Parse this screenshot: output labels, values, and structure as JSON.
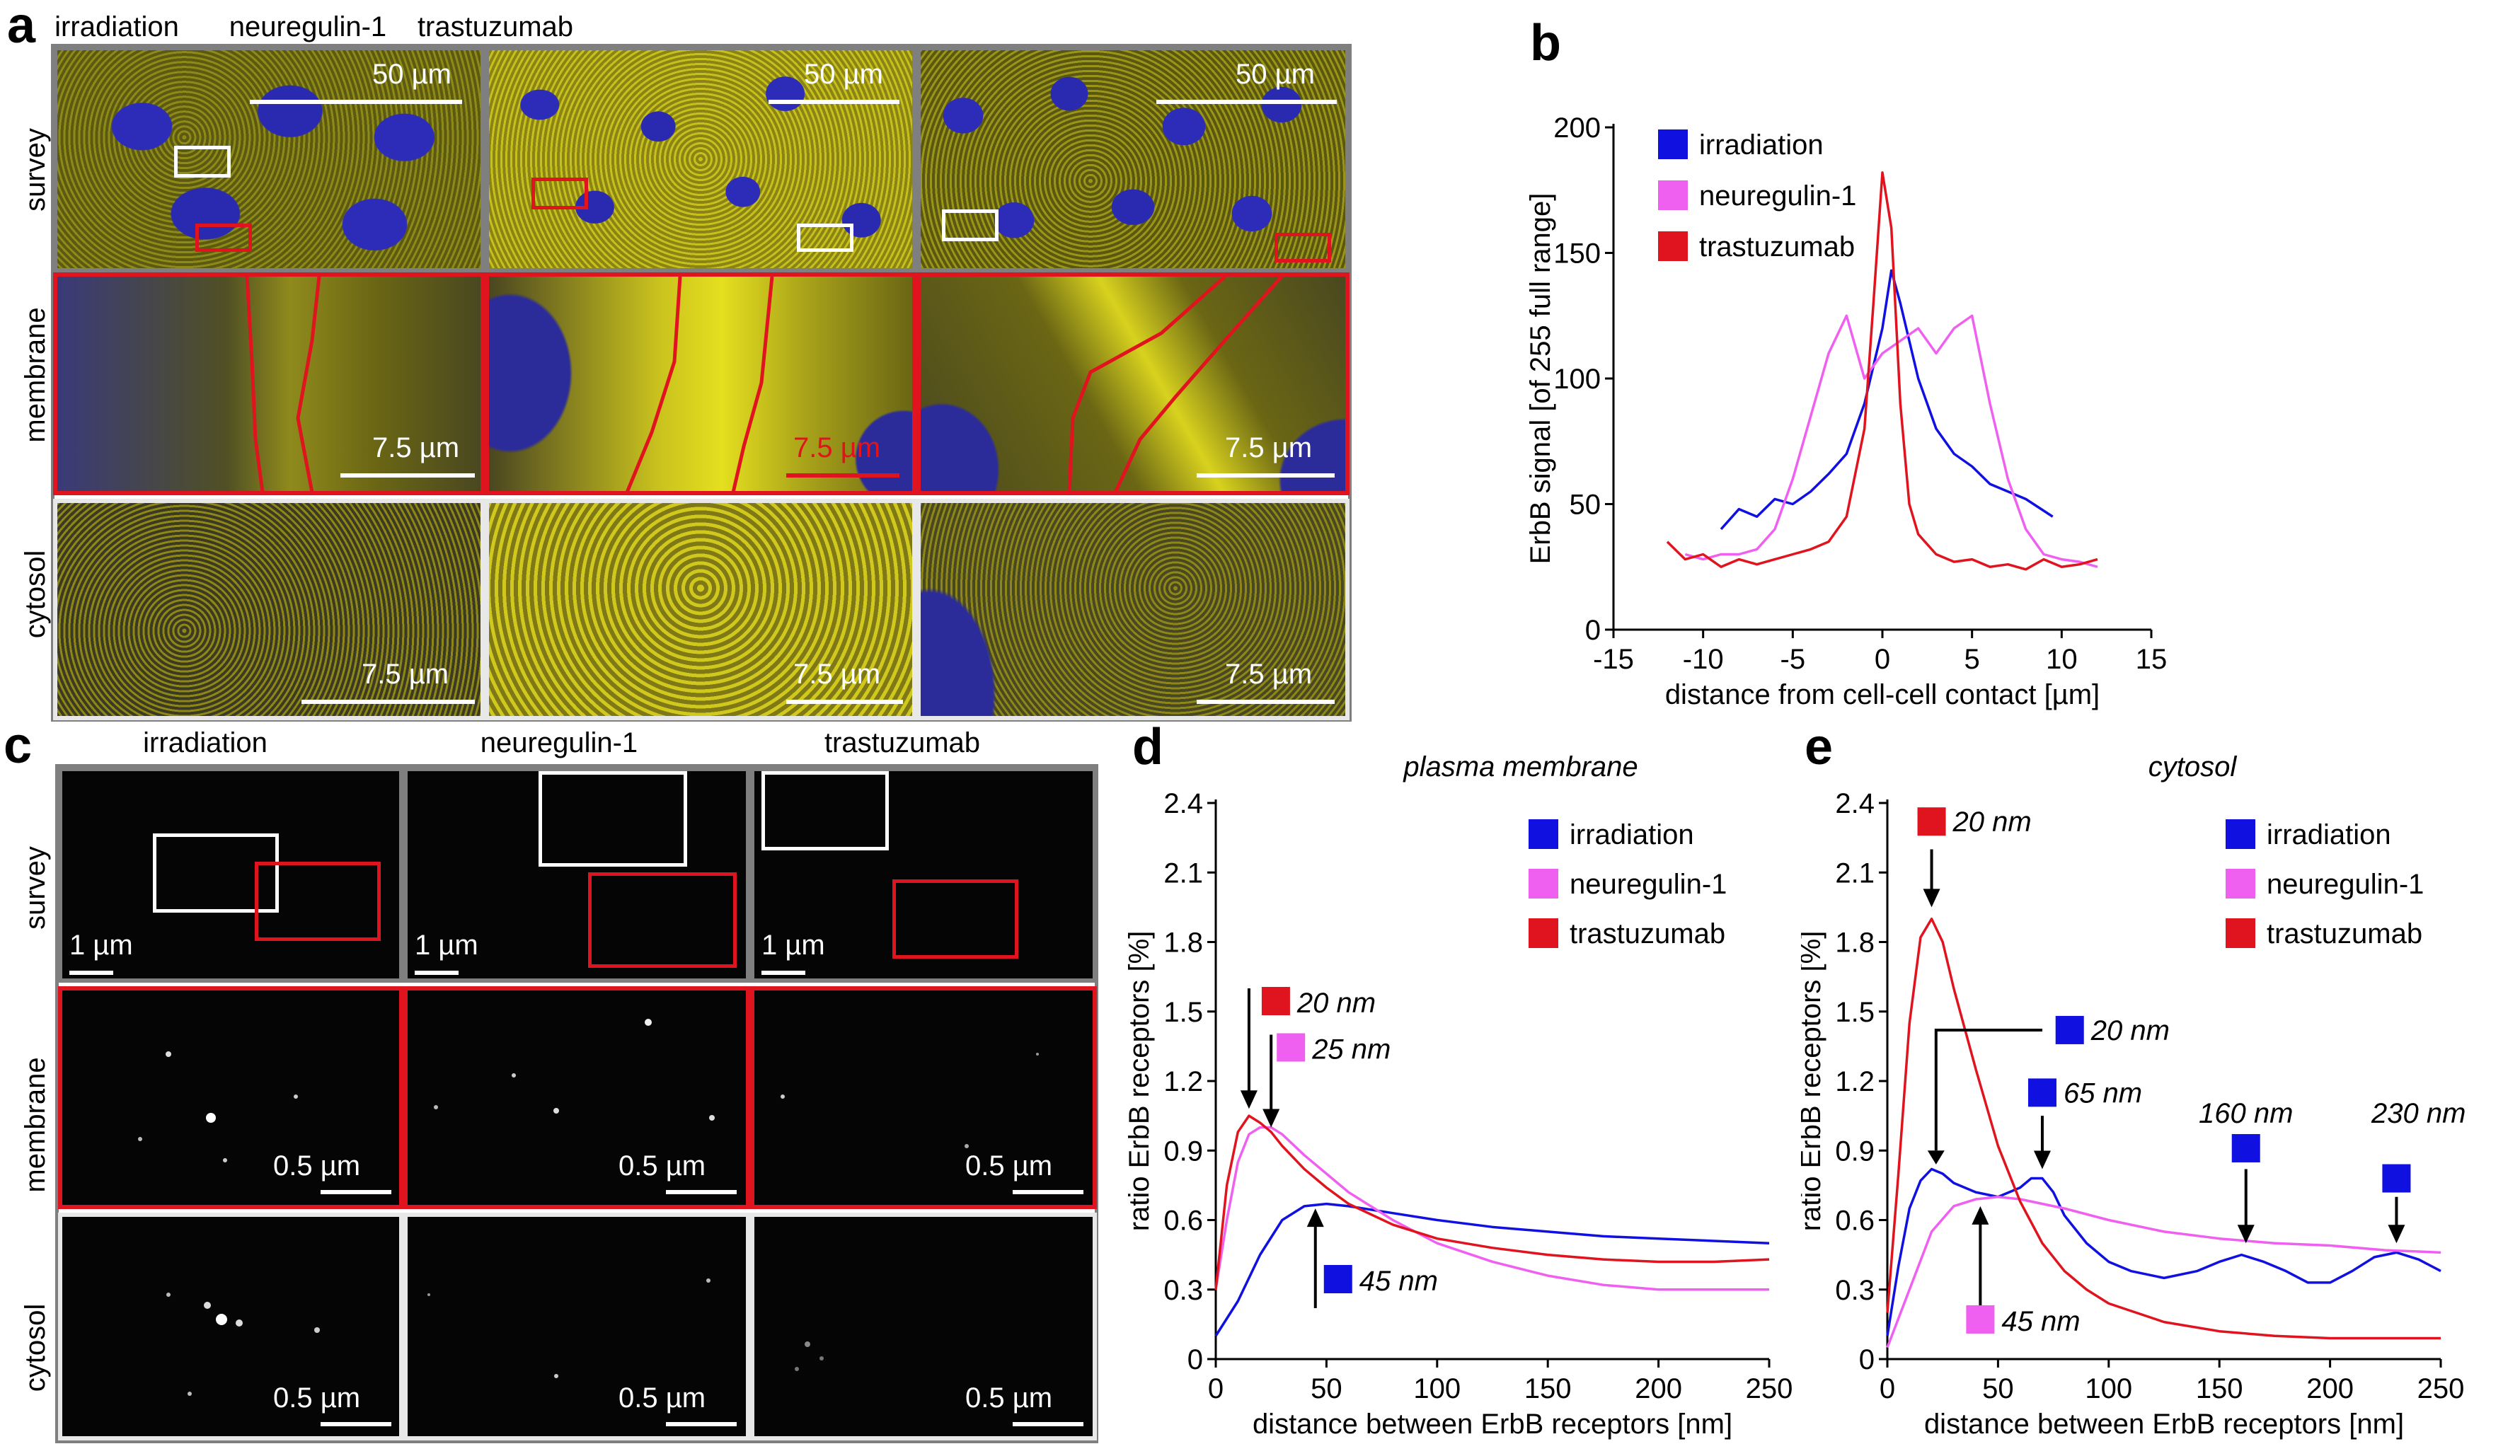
{
  "panel_labels": {
    "a": "a",
    "b": "b",
    "c": "c",
    "d": "d",
    "e": "e"
  },
  "columns": {
    "irradiation": "irradiation",
    "neuregulin": "neuregulin-1",
    "trastuzumab": "trastuzumab"
  },
  "rows": {
    "survey": "survey",
    "membrane": "membrane",
    "cytosol": "cytosol"
  },
  "scales": {
    "s50": "50 µm",
    "s75": "7.5 µm",
    "s1": "1 µm",
    "s05": "0.5 µm"
  },
  "colors": {
    "irradiation": "#1010e0",
    "neuregulin": "#f060f0",
    "trastuzumab": "#e0141e"
  },
  "chart_data": [
    {
      "id": "b",
      "type": "line",
      "title": "",
      "xlabel": "distance from cell-cell contact [µm]",
      "ylabel": "ErbB signal [of 255 full range]",
      "xlim": [
        -15,
        15
      ],
      "ylim": [
        0,
        200
      ],
      "xticks": [
        "-15",
        "-10",
        "-5",
        "0",
        "5",
        "10",
        "15"
      ],
      "yticks": [
        "0",
        "50",
        "100",
        "150",
        "200"
      ],
      "legend": [
        "irradiation",
        "neuregulin-1",
        "trastuzumab"
      ],
      "series": [
        {
          "name": "irradiation",
          "x": [
            -9,
            -8,
            -7,
            -6,
            -5,
            -4,
            -3,
            -2,
            -1,
            0,
            0.5,
            1,
            2,
            3,
            4,
            5,
            6,
            7,
            8,
            9.5
          ],
          "y": [
            40,
            48,
            45,
            52,
            50,
            55,
            62,
            70,
            90,
            120,
            143,
            130,
            100,
            80,
            70,
            65,
            58,
            55,
            52,
            45
          ]
        },
        {
          "name": "neuregulin-1",
          "x": [
            -11,
            -10,
            -9,
            -8,
            -7,
            -6,
            -5,
            -4,
            -3,
            -2,
            -1,
            0,
            1,
            2,
            3,
            4,
            5,
            6,
            7,
            8,
            9,
            10,
            11,
            12
          ],
          "y": [
            30,
            28,
            30,
            30,
            32,
            40,
            60,
            85,
            110,
            125,
            100,
            110,
            115,
            120,
            110,
            120,
            125,
            90,
            60,
            40,
            30,
            28,
            27,
            25
          ]
        },
        {
          "name": "trastuzumab",
          "x": [
            -12,
            -11,
            -10,
            -9,
            -8,
            -7,
            -6,
            -5,
            -4,
            -3,
            -2,
            -1,
            -0.5,
            0,
            0.5,
            1,
            1.5,
            2,
            3,
            4,
            5,
            6,
            7,
            8,
            9,
            10,
            11,
            12
          ],
          "y": [
            35,
            28,
            30,
            25,
            28,
            26,
            28,
            30,
            32,
            35,
            45,
            80,
            130,
            182,
            160,
            90,
            50,
            38,
            30,
            27,
            28,
            25,
            26,
            24,
            28,
            25,
            26,
            28
          ]
        }
      ]
    },
    {
      "id": "d",
      "type": "line",
      "title": "plasma membrane",
      "xlabel": "distance between ErbB receptors [nm]",
      "ylabel": "ratio ErbB receptors [%]",
      "xlim": [
        0,
        250
      ],
      "ylim": [
        0,
        2.4
      ],
      "xticks": [
        "0",
        "50",
        "100",
        "150",
        "200",
        "250"
      ],
      "yticks": [
        "0",
        "0.3",
        "0.6",
        "0.9",
        "1.2",
        "1.5",
        "1.8",
        "2.1",
        "2.4"
      ],
      "legend": [
        "irradiation",
        "neuregulin-1",
        "trastuzumab"
      ],
      "annotations": [
        "20 nm",
        "25 nm",
        "45 nm"
      ],
      "series": [
        {
          "name": "irradiation",
          "x": [
            0,
            10,
            20,
            30,
            40,
            50,
            60,
            80,
            100,
            125,
            150,
            175,
            200,
            225,
            250
          ],
          "y": [
            0.1,
            0.25,
            0.45,
            0.6,
            0.66,
            0.67,
            0.66,
            0.63,
            0.6,
            0.57,
            0.55,
            0.53,
            0.52,
            0.51,
            0.5
          ]
        },
        {
          "name": "neuregulin-1",
          "x": [
            0,
            5,
            10,
            15,
            20,
            25,
            30,
            40,
            50,
            60,
            80,
            100,
            125,
            150,
            175,
            200,
            225,
            250
          ],
          "y": [
            0.3,
            0.6,
            0.85,
            0.97,
            1.0,
            1.0,
            0.97,
            0.88,
            0.8,
            0.72,
            0.6,
            0.5,
            0.42,
            0.36,
            0.32,
            0.3,
            0.3,
            0.3
          ]
        },
        {
          "name": "trastuzumab",
          "x": [
            0,
            5,
            10,
            15,
            20,
            25,
            30,
            40,
            50,
            60,
            80,
            100,
            125,
            150,
            175,
            200,
            225,
            250
          ],
          "y": [
            0.3,
            0.75,
            0.98,
            1.05,
            1.02,
            0.98,
            0.92,
            0.82,
            0.74,
            0.67,
            0.58,
            0.52,
            0.48,
            0.45,
            0.43,
            0.42,
            0.42,
            0.43
          ]
        }
      ]
    },
    {
      "id": "e",
      "type": "line",
      "title": "cytosol",
      "xlabel": "distance between ErbB receptors [nm]",
      "ylabel": "ratio ErbB receptors [%]",
      "xlim": [
        0,
        250
      ],
      "ylim": [
        0,
        2.4
      ],
      "xticks": [
        "0",
        "50",
        "100",
        "150",
        "200",
        "250"
      ],
      "yticks": [
        "0",
        "0.3",
        "0.6",
        "0.9",
        "1.2",
        "1.5",
        "1.8",
        "2.1",
        "2.4"
      ],
      "legend": [
        "irradiation",
        "neuregulin-1",
        "trastuzumab"
      ],
      "annotations": [
        "20 nm",
        "20 nm",
        "65 nm",
        "160 nm",
        "230 nm",
        "45 nm"
      ],
      "series": [
        {
          "name": "irradiation",
          "x": [
            0,
            5,
            10,
            15,
            20,
            25,
            30,
            40,
            50,
            60,
            65,
            70,
            75,
            80,
            90,
            100,
            110,
            125,
            140,
            150,
            160,
            170,
            180,
            190,
            200,
            210,
            220,
            230,
            240,
            250
          ],
          "y": [
            0.1,
            0.4,
            0.65,
            0.77,
            0.82,
            0.8,
            0.76,
            0.72,
            0.7,
            0.74,
            0.78,
            0.78,
            0.72,
            0.62,
            0.5,
            0.42,
            0.38,
            0.35,
            0.38,
            0.42,
            0.45,
            0.42,
            0.38,
            0.33,
            0.33,
            0.38,
            0.44,
            0.46,
            0.43,
            0.38
          ]
        },
        {
          "name": "neuregulin-1",
          "x": [
            0,
            10,
            20,
            30,
            40,
            50,
            60,
            80,
            100,
            125,
            150,
            175,
            200,
            225,
            250
          ],
          "y": [
            0.05,
            0.3,
            0.55,
            0.66,
            0.69,
            0.7,
            0.69,
            0.65,
            0.6,
            0.55,
            0.52,
            0.5,
            0.49,
            0.47,
            0.46
          ]
        },
        {
          "name": "trastuzumab",
          "x": [
            0,
            5,
            10,
            15,
            20,
            25,
            30,
            40,
            50,
            60,
            70,
            80,
            90,
            100,
            125,
            150,
            175,
            200,
            225,
            250
          ],
          "y": [
            0.2,
            0.8,
            1.45,
            1.82,
            1.9,
            1.8,
            1.6,
            1.25,
            0.92,
            0.68,
            0.5,
            0.38,
            0.3,
            0.24,
            0.16,
            0.12,
            0.1,
            0.09,
            0.09,
            0.09
          ]
        }
      ]
    }
  ]
}
